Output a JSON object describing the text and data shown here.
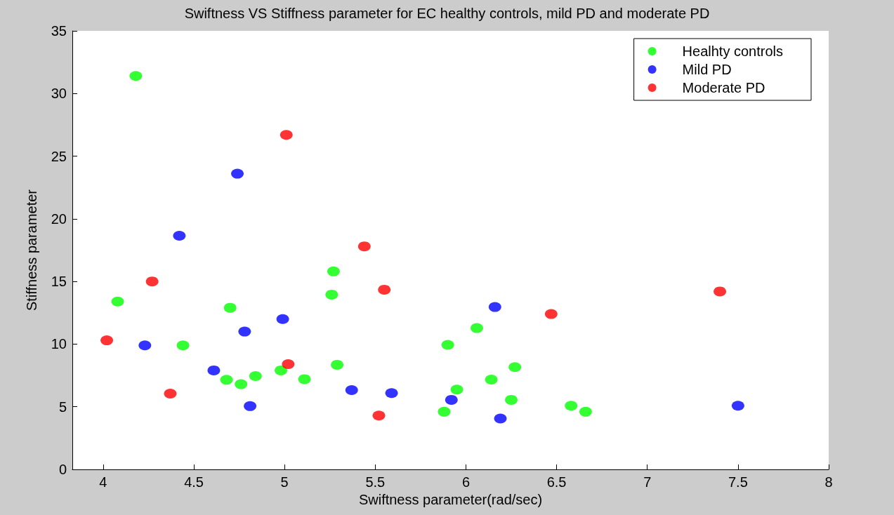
{
  "chart_data": {
    "type": "scatter",
    "title": "Swiftness VS Stiffness parameter for EC healthy controls, mild PD and moderate PD",
    "xlabel": "Swiftness parameter(rad/sec)",
    "ylabel": "Stiffness parameter",
    "xlim": [
      3.83,
      8
    ],
    "xticks": [
      4,
      4.5,
      5,
      5.5,
      6,
      6.5,
      7,
      7.5,
      8
    ],
    "ylim": [
      0,
      35
    ],
    "yticks": [
      0,
      5,
      10,
      15,
      20,
      25,
      30,
      35
    ],
    "grid": false,
    "legend": "top right",
    "marker": "circle",
    "series": [
      {
        "name": "Healhty controls",
        "color": "#00ff00",
        "x": [
          4.18,
          4.08,
          4.44,
          4.7,
          4.68,
          4.76,
          4.84,
          4.98,
          5.11,
          5.27,
          5.26,
          5.29,
          6.06,
          5.9,
          6.27,
          6.14,
          5.95,
          6.25,
          5.88,
          6.58,
          6.66
        ],
        "values": [
          31.4,
          13.4,
          9.9,
          12.9,
          7.15,
          6.8,
          7.45,
          7.9,
          7.2,
          15.8,
          13.95,
          8.35,
          11.28,
          9.94,
          8.16,
          7.17,
          6.37,
          5.55,
          4.6,
          5.08,
          4.6
        ]
      },
      {
        "name": "Mild PD",
        "color": "#0000ff",
        "x": [
          4.74,
          4.42,
          4.23,
          4.99,
          4.78,
          4.61,
          4.81,
          5.37,
          5.59,
          6.16,
          5.92,
          6.19,
          7.5
        ],
        "values": [
          23.6,
          18.65,
          9.9,
          12.0,
          11.0,
          7.9,
          5.05,
          6.33,
          6.09,
          12.96,
          5.55,
          4.06,
          5.08
        ]
      },
      {
        "name": "Moderate PD",
        "color": "#ff0000",
        "x": [
          5.01,
          4.27,
          4.02,
          5.02,
          4.37,
          5.44,
          5.55,
          5.52,
          6.47,
          7.4
        ],
        "values": [
          26.7,
          15.0,
          10.3,
          8.4,
          6.05,
          17.8,
          14.34,
          4.3,
          12.4,
          14.2
        ]
      }
    ]
  }
}
